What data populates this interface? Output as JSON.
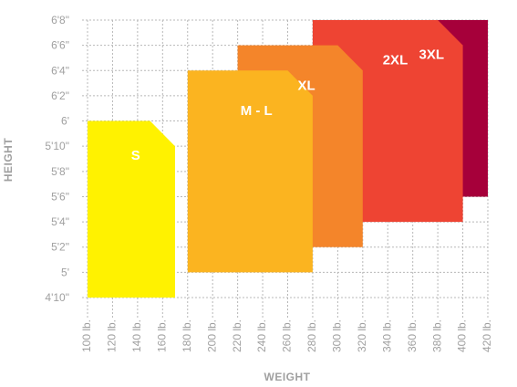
{
  "chart_data": {
    "type": "area",
    "xlabel": "WEIGHT",
    "ylabel": "HEIGHT",
    "x_ticks": [
      100,
      120,
      140,
      160,
      180,
      200,
      220,
      240,
      260,
      280,
      300,
      320,
      340,
      360,
      380,
      400,
      420
    ],
    "x_tick_labels": [
      "100 lb.",
      "120 lb.",
      "140 lb.",
      "160 lb.",
      "180 lb.",
      "200 lb.",
      "220 lb.",
      "240 lb.",
      "260 lb.",
      "280 lb.",
      "300 lb.",
      "320 lb.",
      "340 lb.",
      "360 lb.",
      "380 lb.",
      "400 lb.",
      "420 lb."
    ],
    "y_ticks": [
      58,
      60,
      62,
      64,
      66,
      68,
      70,
      72,
      74,
      76,
      78,
      80
    ],
    "y_tick_labels": [
      "4'10\"",
      "5'",
      "5'2\"",
      "5'4\"",
      "5'6\"",
      "5'8\"",
      "5'10\"",
      "6'",
      "6'2\"",
      "6'4\"",
      "6'6\"",
      "6'8\""
    ],
    "xlim": [
      100,
      420
    ],
    "ylim": [
      58,
      80
    ],
    "grid": true,
    "series": [
      {
        "name": "3XL",
        "color": "#a6003a",
        "region": [
          [
            320,
            66
          ],
          [
            320,
            80
          ],
          [
            420,
            80
          ],
          [
            420,
            66
          ]
        ]
      },
      {
        "name": "2XL",
        "color": "#ee4433",
        "region": [
          [
            280,
            64
          ],
          [
            280,
            80
          ],
          [
            380,
            80
          ],
          [
            400,
            78
          ],
          [
            400,
            64
          ]
        ]
      },
      {
        "name": "XL",
        "color": "#f4852a",
        "region": [
          [
            220,
            62
          ],
          [
            220,
            78
          ],
          [
            300,
            78
          ],
          [
            320,
            76
          ],
          [
            320,
            62
          ]
        ]
      },
      {
        "name": "M - L",
        "color": "#fbb420",
        "region": [
          [
            180,
            60
          ],
          [
            180,
            76
          ],
          [
            260,
            76
          ],
          [
            280,
            74
          ],
          [
            280,
            60
          ]
        ]
      },
      {
        "name": "S",
        "color": "#fff200",
        "region": [
          [
            100,
            58
          ],
          [
            100,
            72
          ],
          [
            150,
            72
          ],
          [
            170,
            70
          ],
          [
            170,
            58
          ]
        ]
      }
    ]
  }
}
